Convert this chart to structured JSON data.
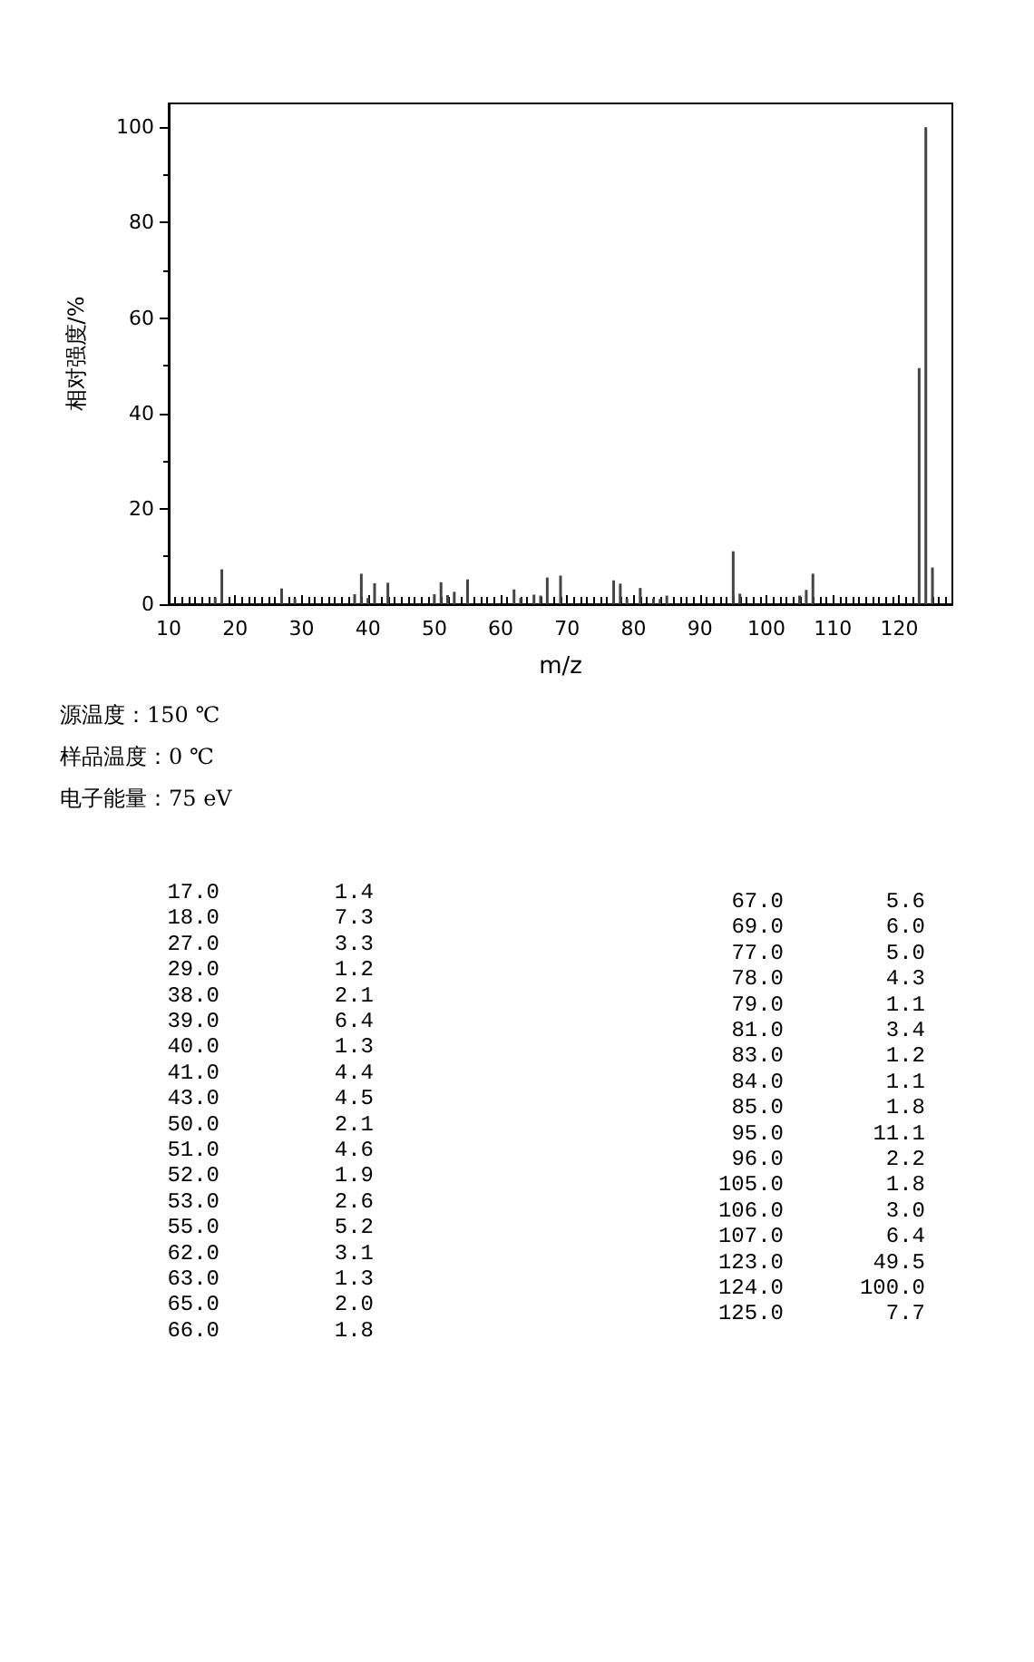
{
  "chart_data": {
    "type": "bar",
    "xlabel": "m/z",
    "ylabel": "相对强度/%",
    "x": [
      17,
      18,
      27,
      29,
      38,
      39,
      40,
      41,
      43,
      50,
      51,
      52,
      53,
      55,
      62,
      63,
      65,
      66,
      67,
      69,
      77,
      78,
      79,
      81,
      83,
      84,
      85,
      95,
      96,
      105,
      106,
      107,
      123,
      124,
      125
    ],
    "values": [
      1.4,
      7.3,
      3.3,
      1.2,
      2.1,
      6.4,
      1.3,
      4.4,
      4.5,
      2.1,
      4.6,
      1.9,
      2.6,
      5.2,
      3.1,
      1.3,
      2.0,
      1.8,
      5.6,
      6.0,
      5.0,
      4.3,
      1.1,
      3.4,
      1.2,
      1.1,
      1.8,
      11.1,
      2.2,
      1.8,
      3.0,
      6.4,
      49.5,
      100.0,
      7.7
    ],
    "color": "#444444",
    "xlim": [
      10,
      128
    ],
    "xticks": [
      10,
      20,
      30,
      40,
      50,
      60,
      70,
      80,
      90,
      100,
      110,
      120
    ],
    "ylim": [
      0,
      105
    ],
    "yticks": [
      0,
      20,
      40,
      60,
      80,
      100
    ],
    "grid": false,
    "annotations": [
      "源温度：150 ℃",
      "样品温度：0 ℃",
      "电子能量：75 eV",
      "17.0",
      "1.4",
      "18.0",
      "7.3",
      "27.0",
      "3.3",
      "29.0",
      "1.2",
      "38.0",
      "2.1",
      "39.0",
      "6.4",
      "40.0",
      "1.3",
      "41.0",
      "4.4",
      "43.0",
      "4.5",
      "50.0",
      "2.1",
      "51.0",
      "4.6",
      "52.0",
      "1.9",
      "53.0",
      "2.6",
      "55.0",
      "5.2",
      "62.0",
      "3.1",
      "63.0",
      "1.3",
      "65.0",
      "2.0",
      "66.0",
      "1.8",
      "67.0",
      "5.6",
      "69.0",
      "6.0",
      "77.0",
      "5.0",
      "78.0",
      "4.3",
      "79.0",
      "1.1",
      "81.0",
      "3.4",
      "83.0",
      "1.2",
      "84.0",
      "1.1",
      "85.0",
      "1.8",
      "95.0",
      "11.1",
      "96.0",
      "2.2",
      "105.0",
      "1.8",
      "106.0",
      "3.0",
      "107.0",
      "6.4",
      "123.0",
      "49.5",
      "124.0",
      "100.0",
      "125.0",
      "7.7"
    ]
  }
}
